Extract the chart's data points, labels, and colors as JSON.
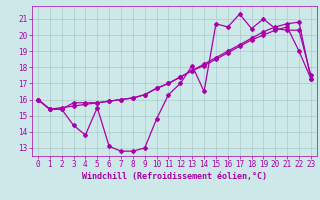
{
  "bg_color": "#cce8e8",
  "grid_color": "#aacccc",
  "line_color": "#aa00aa",
  "marker": "D",
  "marker_size": 2.0,
  "line_width": 0.9,
  "xlabel": "Windchill (Refroidissement éolien,°C)",
  "xlabel_color": "#aa00aa",
  "xlabel_fontsize": 6.0,
  "tick_color": "#aa00aa",
  "tick_fontsize": 5.5,
  "xlim": [
    -0.5,
    23.5
  ],
  "ylim": [
    12.5,
    21.8
  ],
  "yticks": [
    13,
    14,
    15,
    16,
    17,
    18,
    19,
    20,
    21
  ],
  "xticks": [
    0,
    1,
    2,
    3,
    4,
    5,
    6,
    7,
    8,
    9,
    10,
    11,
    12,
    13,
    14,
    15,
    16,
    17,
    18,
    19,
    20,
    21,
    22,
    23
  ],
  "line1_x": [
    0,
    1,
    2,
    3,
    4,
    5,
    6,
    7,
    8,
    9,
    10,
    11,
    12,
    13,
    14,
    15,
    16,
    17,
    18,
    19,
    20,
    21,
    22,
    23
  ],
  "line1_y": [
    16.0,
    15.4,
    15.4,
    15.8,
    15.8,
    15.8,
    15.9,
    16.0,
    16.1,
    16.3,
    16.7,
    17.0,
    17.4,
    17.8,
    18.2,
    18.6,
    19.0,
    19.4,
    19.8,
    20.2,
    20.5,
    20.7,
    20.8,
    17.3
  ],
  "line2_x": [
    0,
    1,
    2,
    3,
    4,
    5,
    6,
    7,
    8,
    9,
    10,
    11,
    12,
    13,
    14,
    15,
    16,
    17,
    18,
    19,
    20,
    21,
    22,
    23
  ],
  "line2_y": [
    16.0,
    15.4,
    15.4,
    14.4,
    13.8,
    15.5,
    13.1,
    12.8,
    12.8,
    13.0,
    14.8,
    16.3,
    17.0,
    18.1,
    16.5,
    20.7,
    20.5,
    21.3,
    20.4,
    21.0,
    20.4,
    20.3,
    20.3,
    17.5
  ],
  "line3_x": [
    0,
    1,
    2,
    3,
    4,
    5,
    6,
    7,
    8,
    9,
    10,
    11,
    12,
    13,
    14,
    15,
    16,
    17,
    18,
    19,
    20,
    21,
    22,
    23
  ],
  "line3_y": [
    16.0,
    15.4,
    15.5,
    15.6,
    15.7,
    15.8,
    15.9,
    16.0,
    16.1,
    16.3,
    16.7,
    17.0,
    17.4,
    17.8,
    18.1,
    18.5,
    18.9,
    19.3,
    19.7,
    20.0,
    20.3,
    20.5,
    19.0,
    17.3
  ]
}
